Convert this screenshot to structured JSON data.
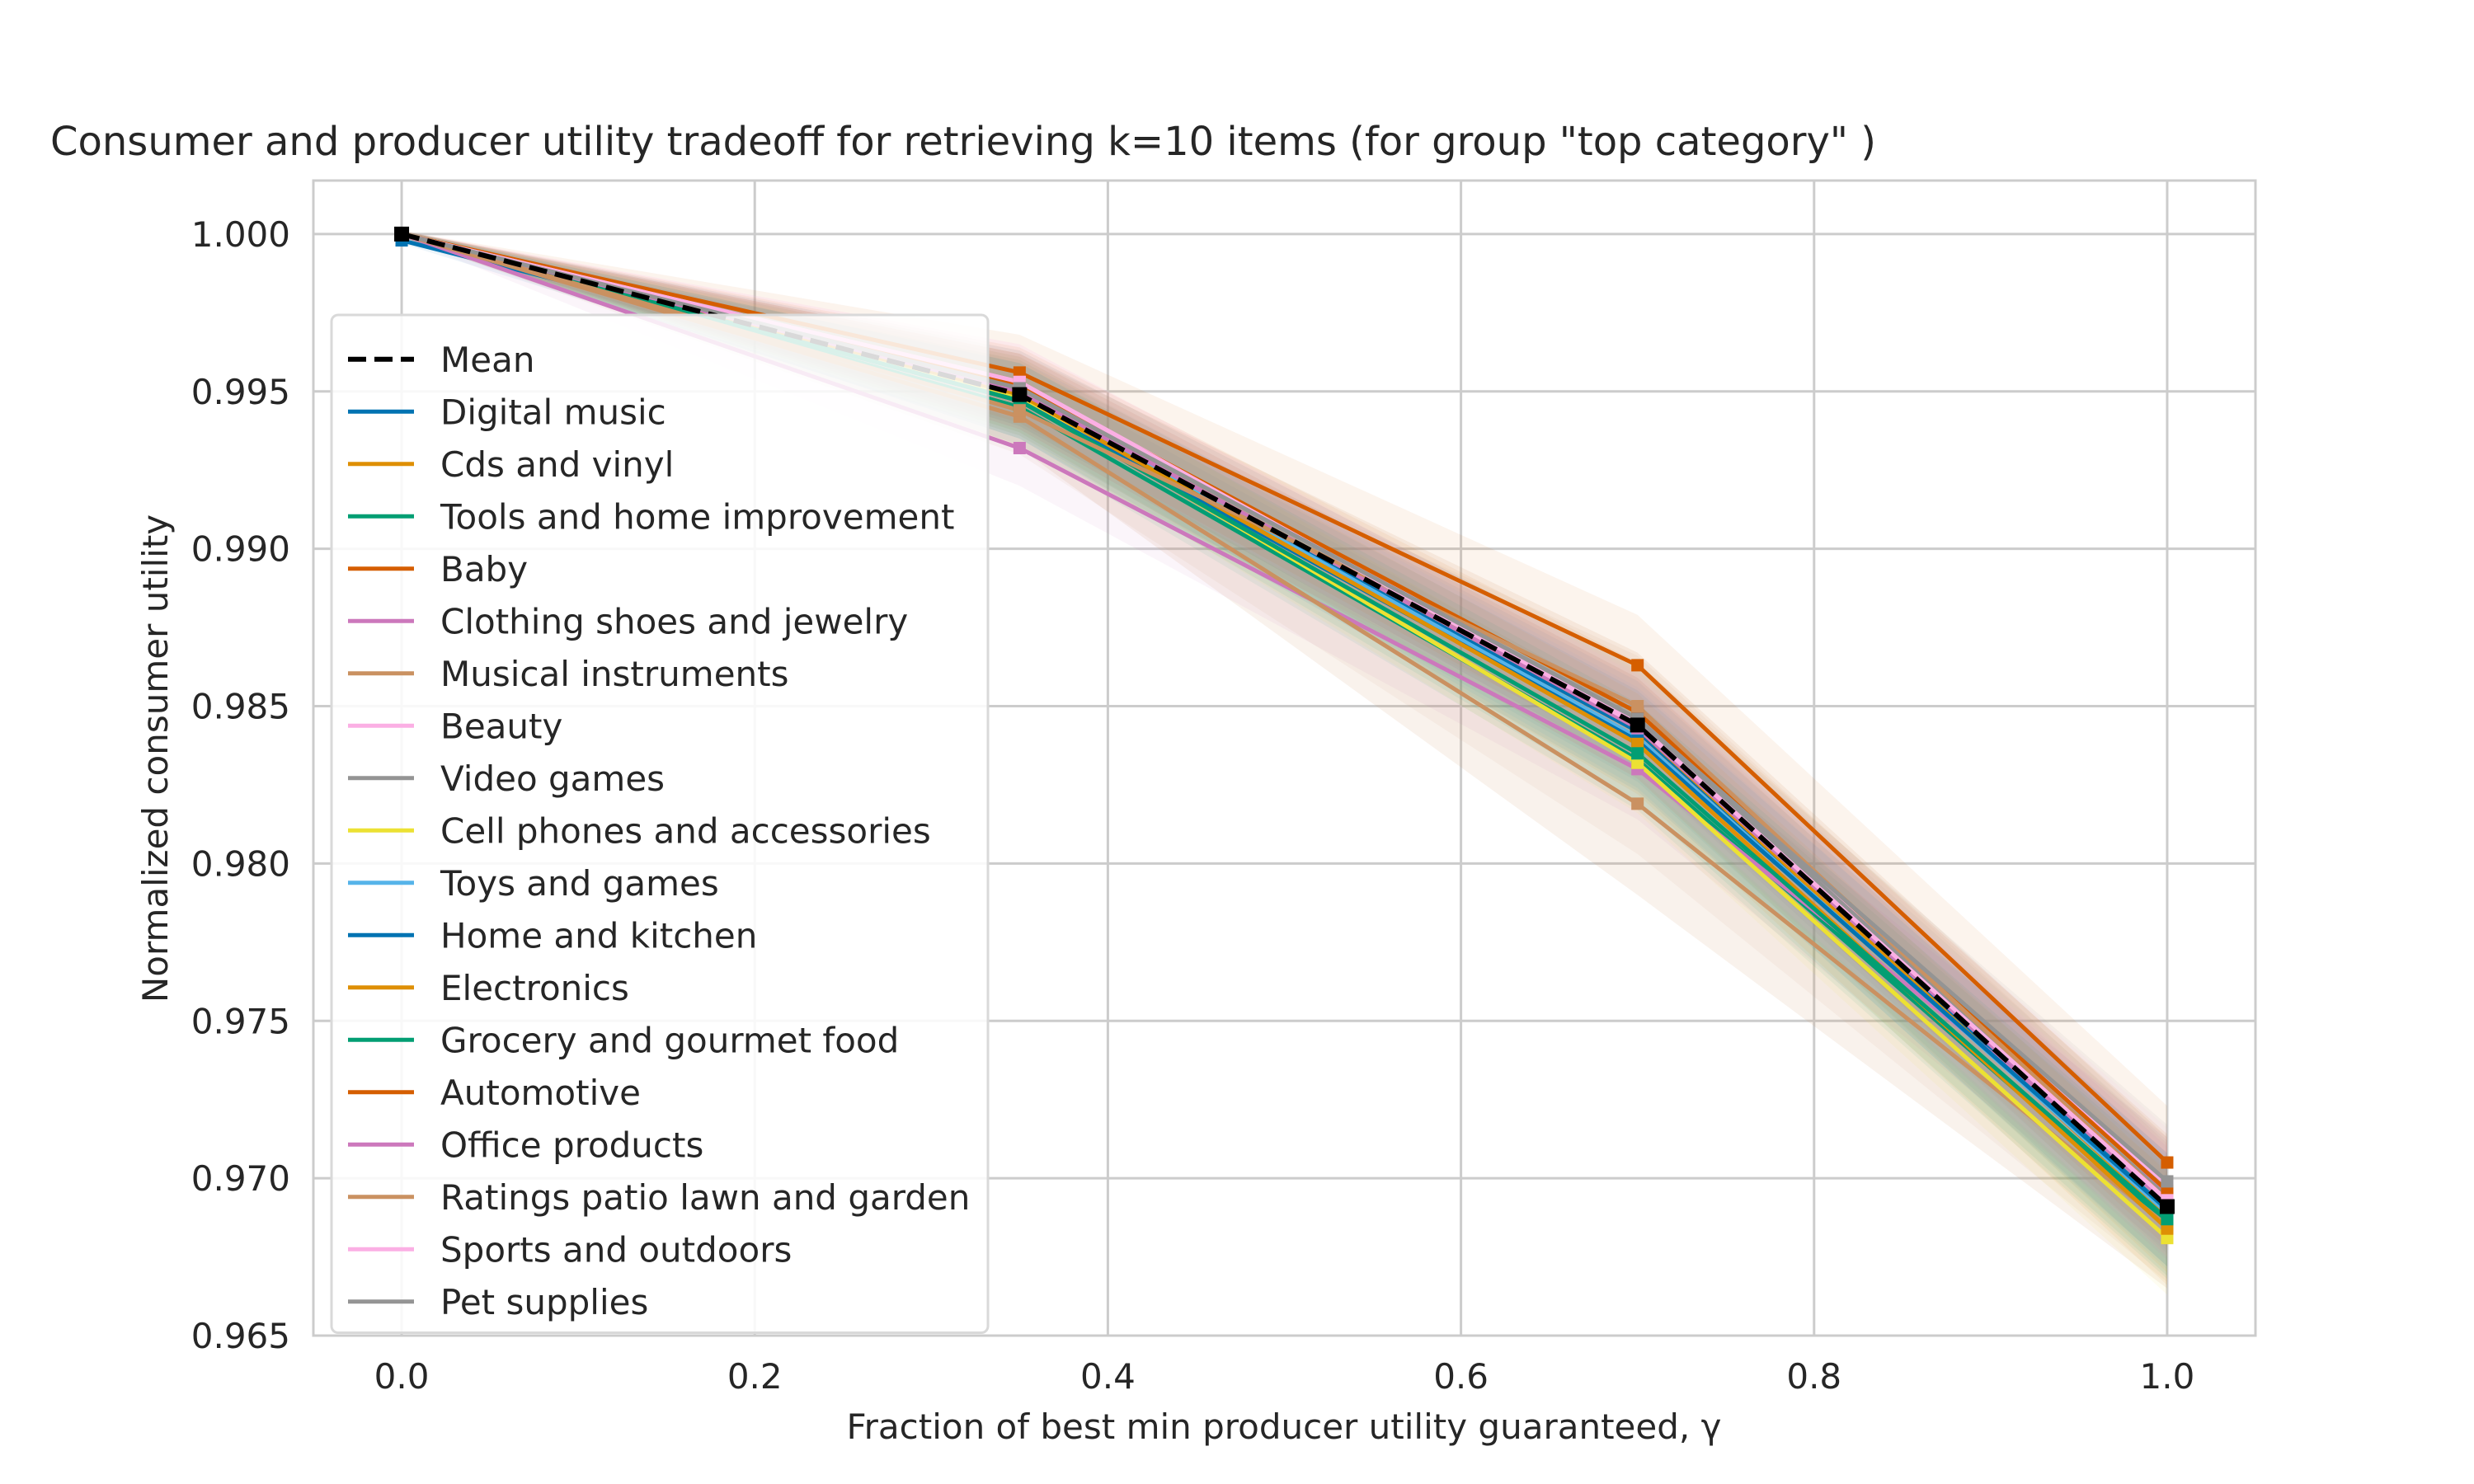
{
  "chart_data": {
    "type": "line",
    "title": "Consumer and producer utility tradeoff for retrieving k=10 items (for group \"top category\" )",
    "xlabel": "Fraction of best min producer utility guaranteed, γ",
    "ylabel": "Normalized consumer utility",
    "xlim": [
      -0.05,
      1.05
    ],
    "ylim": [
      0.965,
      1.0017
    ],
    "xticks": [
      0.0,
      0.2,
      0.4,
      0.6,
      0.8,
      1.0
    ],
    "xtick_labels": [
      "0.0",
      "0.2",
      "0.4",
      "0.6",
      "0.8",
      "1.0"
    ],
    "yticks": [
      0.965,
      0.97,
      0.975,
      0.98,
      0.985,
      0.99,
      0.995,
      1.0
    ],
    "ytick_labels": [
      "0.965",
      "0.970",
      "0.975",
      "0.980",
      "0.985",
      "0.990",
      "0.995",
      "1.000"
    ],
    "grid": true,
    "legend_position": "left",
    "x": [
      0.0,
      0.35,
      0.7,
      1.0
    ],
    "mean": {
      "name": "Mean",
      "color": "#000000",
      "style": "dashed",
      "values": [
        1.0,
        0.9949,
        0.9844,
        0.9691
      ]
    },
    "band": {
      "lower": [
        0.9999,
        0.9932,
        0.979,
        0.9665
      ],
      "upper": [
        1.0001,
        0.9962,
        0.9867,
        0.9713
      ]
    },
    "series": [
      {
        "name": "Digital music",
        "color": "#0173b2",
        "values": [
          0.9998,
          0.9948,
          0.9842,
          0.969
        ]
      },
      {
        "name": "Cds and vinyl",
        "color": "#de8f05",
        "values": [
          1.0,
          0.995,
          0.9843,
          0.9688
        ]
      },
      {
        "name": "Tools and home improvement",
        "color": "#029e73",
        "values": [
          1.0,
          0.9945,
          0.9833,
          0.9686
        ]
      },
      {
        "name": "Baby",
        "color": "#d55e00",
        "values": [
          1.0,
          0.9956,
          0.9863,
          0.9705
        ]
      },
      {
        "name": "Clothing shoes and jewelry",
        "color": "#cc78bc",
        "values": [
          1.0,
          0.9932,
          0.983,
          0.9695
        ]
      },
      {
        "name": "Musical instruments",
        "color": "#ca9161",
        "values": [
          1.0,
          0.9942,
          0.9819,
          0.9685
        ]
      },
      {
        "name": "Beauty",
        "color": "#fbafe4",
        "values": [
          1.0,
          0.9953,
          0.9845,
          0.9698
        ]
      },
      {
        "name": "Video games",
        "color": "#949494",
        "values": [
          1.0,
          0.9951,
          0.9846,
          0.9694
        ]
      },
      {
        "name": "Cell phones and accessories",
        "color": "#ece133",
        "values": [
          1.0,
          0.9948,
          0.9832,
          0.9681
        ]
      },
      {
        "name": "Toys and games",
        "color": "#56b4e9",
        "values": [
          1.0,
          0.9949,
          0.984,
          0.9689
        ]
      },
      {
        "name": "Home and kitchen",
        "color": "#0173b2",
        "values": [
          1.0,
          0.9947,
          0.9839,
          0.969
        ]
      },
      {
        "name": "Electronics",
        "color": "#de8f05",
        "values": [
          1.0,
          0.9949,
          0.9838,
          0.9684
        ]
      },
      {
        "name": "Grocery and gourmet food",
        "color": "#029e73",
        "values": [
          1.0,
          0.9947,
          0.9835,
          0.9687
        ]
      },
      {
        "name": "Automotive",
        "color": "#d55e00",
        "values": [
          1.0,
          0.9952,
          0.9848,
          0.9696
        ]
      },
      {
        "name": "Office products",
        "color": "#cc78bc",
        "values": [
          1.0,
          0.995,
          0.9843,
          0.9692
        ]
      },
      {
        "name": "Ratings patio lawn and garden",
        "color": "#ca9161",
        "values": [
          1.0,
          0.9944,
          0.985,
          0.9693
        ]
      },
      {
        "name": "Sports and outdoors",
        "color": "#fbafe4",
        "values": [
          1.0,
          0.9953,
          0.9844,
          0.9693
        ]
      },
      {
        "name": "Pet supplies",
        "color": "#949494",
        "values": [
          1.0,
          0.9951,
          0.9846,
          0.9699
        ]
      }
    ]
  }
}
